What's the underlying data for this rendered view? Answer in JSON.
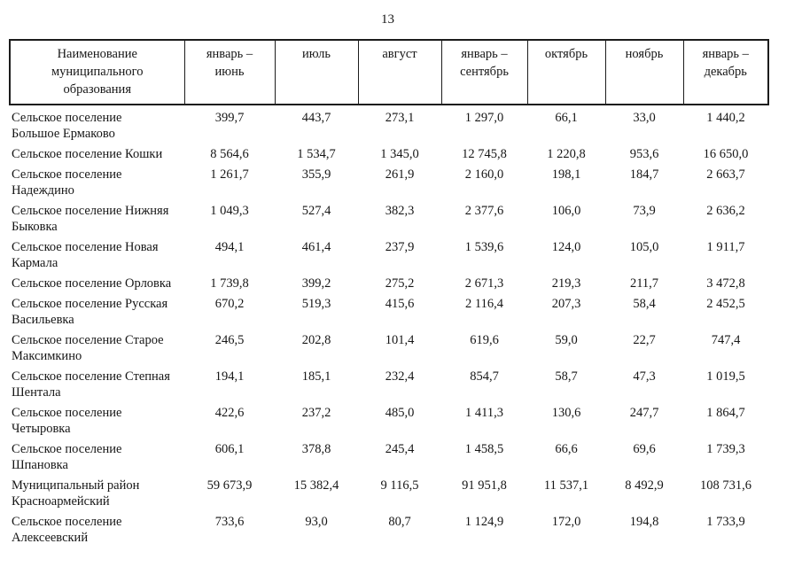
{
  "page": {
    "number": "13"
  },
  "table": {
    "columns": [
      "Наименование\nмуниципального\nобразования",
      "январь –\nиюнь",
      "июль",
      "август",
      "январь –\nсентябрь",
      "октябрь",
      "ноябрь",
      "январь –\nдекабрь"
    ],
    "rows": [
      {
        "name": "Сельское поселение\nБольшое Ермаково",
        "values": [
          "399,7",
          "443,7",
          "273,1",
          "1 297,0",
          "66,1",
          "33,0",
          "1 440,2"
        ]
      },
      {
        "name": "Сельское поселение Кошки",
        "values": [
          "8 564,6",
          "1 534,7",
          "1 345,0",
          "12 745,8",
          "1 220,8",
          "953,6",
          "16 650,0"
        ]
      },
      {
        "name": "Сельское поселение\nНадеждино",
        "values": [
          "1 261,7",
          "355,9",
          "261,9",
          "2 160,0",
          "198,1",
          "184,7",
          "2 663,7"
        ]
      },
      {
        "name": "Сельское поселение Нижняя\nБыковка",
        "values": [
          "1 049,3",
          "527,4",
          "382,3",
          "2 377,6",
          "106,0",
          "73,9",
          "2 636,2"
        ]
      },
      {
        "name": "Сельское поселение Новая\nКармала",
        "values": [
          "494,1",
          "461,4",
          "237,9",
          "1 539,6",
          "124,0",
          "105,0",
          "1 911,7"
        ]
      },
      {
        "name": "Сельское поселение Орловка",
        "values": [
          "1 739,8",
          "399,2",
          "275,2",
          "2 671,3",
          "219,3",
          "211,7",
          "3 472,8"
        ]
      },
      {
        "name": "Сельское поселение Русская\nВасильевка",
        "values": [
          "670,2",
          "519,3",
          "415,6",
          "2 116,4",
          "207,3",
          "58,4",
          "2 452,5"
        ]
      },
      {
        "name": "Сельское поселение Старое\nМаксимкино",
        "values": [
          "246,5",
          "202,8",
          "101,4",
          "619,6",
          "59,0",
          "22,7",
          "747,4"
        ]
      },
      {
        "name": "Сельское поселение Степная\nШентала",
        "values": [
          "194,1",
          "185,1",
          "232,4",
          "854,7",
          "58,7",
          "47,3",
          "1 019,5"
        ]
      },
      {
        "name": "Сельское поселение\nЧетыровка",
        "values": [
          "422,6",
          "237,2",
          "485,0",
          "1 411,3",
          "130,6",
          "247,7",
          "1 864,7"
        ]
      },
      {
        "name": "Сельское поселение\nШпановка",
        "values": [
          "606,1",
          "378,8",
          "245,4",
          "1 458,5",
          "66,6",
          "69,6",
          "1 739,3"
        ]
      },
      {
        "name": "Муниципальный район\nКрасноармейский",
        "values": [
          "59 673,9",
          "15 382,4",
          "9 116,5",
          "91 951,8",
          "11 537,1",
          "8 492,9",
          "108 731,6"
        ]
      },
      {
        "name": "Сельское поселение\nАлексеевский",
        "values": [
          "733,6",
          "93,0",
          "80,7",
          "1 124,9",
          "172,0",
          "194,8",
          "1 733,9"
        ]
      }
    ]
  }
}
